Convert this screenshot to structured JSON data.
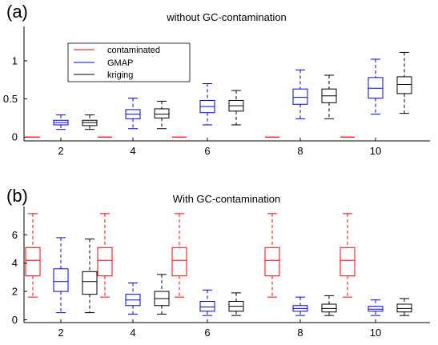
{
  "chart_data": [
    {
      "type": "box",
      "panel_label": "(a)",
      "title": "without GC-contamination",
      "categories": [
        "2",
        "4",
        "6",
        "8",
        "10"
      ],
      "ylim": [
        -0.05,
        1.45
      ],
      "yticks": [
        0,
        0.5,
        1
      ],
      "ytick_labels": [
        "0",
        "0.5",
        "1"
      ],
      "grid": false,
      "legend": {
        "position": "top-left",
        "entries": [
          "contaminated",
          "GMAP",
          "kriging"
        ]
      },
      "series": [
        {
          "name": "contaminated",
          "color": "#ff0000",
          "boxes": [
            {
              "min": 0,
              "q1": 0,
              "median": 0,
              "q3": 0,
              "max": 0
            },
            {
              "min": 0,
              "q1": 0,
              "median": 0,
              "q3": 0,
              "max": 0
            },
            {
              "min": 0,
              "q1": 0,
              "median": 0,
              "q3": 0,
              "max": 0
            },
            {
              "min": 0,
              "q1": 0,
              "median": 0,
              "q3": 0,
              "max": 0
            },
            {
              "min": 0,
              "q1": 0,
              "median": 0,
              "q3": 0,
              "max": 0
            }
          ]
        },
        {
          "name": "GMAP",
          "color": "#0000ff",
          "boxes": [
            {
              "min": 0.1,
              "q1": 0.16,
              "median": 0.19,
              "q3": 0.22,
              "max": 0.29
            },
            {
              "min": 0.11,
              "q1": 0.24,
              "median": 0.3,
              "q3": 0.36,
              "max": 0.51
            },
            {
              "min": 0.16,
              "q1": 0.32,
              "median": 0.4,
              "q3": 0.48,
              "max": 0.7
            },
            {
              "min": 0.24,
              "q1": 0.43,
              "median": 0.52,
              "q3": 0.63,
              "max": 0.88
            },
            {
              "min": 0.3,
              "q1": 0.51,
              "median": 0.64,
              "q3": 0.78,
              "max": 1.02
            }
          ]
        },
        {
          "name": "kriging",
          "color": "#000000",
          "boxes": [
            {
              "min": 0.1,
              "q1": 0.15,
              "median": 0.19,
              "q3": 0.22,
              "max": 0.29
            },
            {
              "min": 0.11,
              "q1": 0.25,
              "median": 0.3,
              "q3": 0.37,
              "max": 0.47
            },
            {
              "min": 0.16,
              "q1": 0.34,
              "median": 0.41,
              "q3": 0.48,
              "max": 0.61
            },
            {
              "min": 0.24,
              "q1": 0.45,
              "median": 0.54,
              "q3": 0.63,
              "max": 0.81
            },
            {
              "min": 0.31,
              "q1": 0.57,
              "median": 0.69,
              "q3": 0.79,
              "max": 1.11
            }
          ]
        }
      ]
    },
    {
      "type": "box",
      "panel_label": "(b)",
      "title": "With GC-contamination",
      "categories": [
        "2",
        "4",
        "6",
        "8",
        "10"
      ],
      "ylim": [
        -0.2,
        8.0
      ],
      "yticks": [
        0,
        2,
        4,
        6
      ],
      "ytick_labels": [
        "0",
        "2",
        "4",
        "6"
      ],
      "grid": false,
      "series": [
        {
          "name": "contaminated",
          "color": "#ff0000",
          "boxes": [
            {
              "min": 1.6,
              "q1": 3.1,
              "median": 4.2,
              "q3": 5.1,
              "max": 7.5
            },
            {
              "min": 1.6,
              "q1": 3.1,
              "median": 4.2,
              "q3": 5.1,
              "max": 7.5
            },
            {
              "min": 1.6,
              "q1": 3.1,
              "median": 4.2,
              "q3": 5.1,
              "max": 7.5
            },
            {
              "min": 1.6,
              "q1": 3.1,
              "median": 4.2,
              "q3": 5.1,
              "max": 7.5
            },
            {
              "min": 1.6,
              "q1": 3.1,
              "median": 4.2,
              "q3": 5.1,
              "max": 7.5
            }
          ]
        },
        {
          "name": "GMAP",
          "color": "#0000ff",
          "boxes": [
            {
              "min": 0.5,
              "q1": 2.0,
              "median": 2.7,
              "q3": 3.6,
              "max": 5.8
            },
            {
              "min": 0.4,
              "q1": 1.0,
              "median": 1.4,
              "q3": 1.8,
              "max": 2.6
            },
            {
              "min": 0.3,
              "q1": 0.6,
              "median": 0.9,
              "q3": 1.3,
              "max": 2.1
            },
            {
              "min": 0.3,
              "q1": 0.6,
              "median": 0.8,
              "q3": 1.0,
              "max": 1.6
            },
            {
              "min": 0.3,
              "q1": 0.6,
              "median": 0.75,
              "q3": 0.95,
              "max": 1.4
            }
          ]
        },
        {
          "name": "kriging",
          "color": "#000000",
          "boxes": [
            {
              "min": 0.5,
              "q1": 1.8,
              "median": 2.7,
              "q3": 3.4,
              "max": 5.7
            },
            {
              "min": 0.4,
              "q1": 1.0,
              "median": 1.5,
              "q3": 2.0,
              "max": 3.2
            },
            {
              "min": 0.3,
              "q1": 0.6,
              "median": 0.95,
              "q3": 1.3,
              "max": 1.9
            },
            {
              "min": 0.3,
              "q1": 0.55,
              "median": 0.8,
              "q3": 1.1,
              "max": 1.7
            },
            {
              "min": 0.3,
              "q1": 0.55,
              "median": 0.8,
              "q3": 1.1,
              "max": 1.5
            }
          ]
        }
      ]
    }
  ]
}
